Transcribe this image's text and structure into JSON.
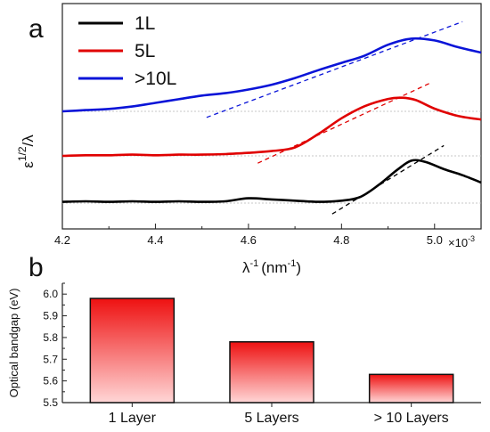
{
  "chart_data": [
    {
      "panel_label": "a",
      "type": "line",
      "xlabel": "λ",
      "xlabel_sup": "-1",
      "xlabel_unit": "(nm",
      "xlabel_unit_sup": "-1",
      "xlabel_close": ")",
      "ylabel": "ε",
      "ylabel_sup": "1/2",
      "ylabel_tail": "/λ",
      "xlim": [
        4.2,
        5.1
      ],
      "x_ticks": [
        "4.2",
        "4.4",
        "4.6",
        "4.8",
        "5.0"
      ],
      "x_multiplier": "×10",
      "x_multiplier_exp": "-3",
      "legend": [
        "1L",
        "5L",
        ">10L"
      ],
      "series": [
        {
          "name": "1L",
          "color": "#000000",
          "offset": 0,
          "x": [
            4.2,
            4.25,
            4.3,
            4.35,
            4.4,
            4.45,
            4.5,
            4.55,
            4.6,
            4.65,
            4.7,
            4.75,
            4.8,
            4.84,
            4.88,
            4.92,
            4.95,
            4.98,
            5.02,
            5.06,
            5.1
          ],
          "y": [
            0.02,
            0.03,
            0.02,
            0.03,
            0.02,
            0.03,
            0.02,
            0.03,
            0.08,
            0.06,
            0.04,
            0.02,
            0.04,
            0.1,
            0.3,
            0.55,
            0.7,
            0.68,
            0.56,
            0.46,
            0.34
          ],
          "fit_line": [
            [
              4.78,
              -0.18
            ],
            [
              5.02,
              0.95
            ]
          ]
        },
        {
          "name": "5L",
          "color": "#e00000",
          "offset": 1,
          "x": [
            4.2,
            4.25,
            4.3,
            4.35,
            4.4,
            4.45,
            4.5,
            4.55,
            4.6,
            4.65,
            4.7,
            4.75,
            4.8,
            4.85,
            4.9,
            4.93,
            4.96,
            5.0,
            5.05,
            5.1
          ],
          "y": [
            0.0,
            0.01,
            0.01,
            0.02,
            0.01,
            0.02,
            0.02,
            0.03,
            0.05,
            0.08,
            0.14,
            0.36,
            0.62,
            0.82,
            0.94,
            0.96,
            0.92,
            0.78,
            0.66,
            0.6
          ],
          "fit_line": [
            [
              4.62,
              -0.12
            ],
            [
              4.99,
              1.2
            ]
          ]
        },
        {
          "name": ">10L",
          "color": "#0a14d8",
          "offset": 2,
          "x": [
            4.2,
            4.25,
            4.3,
            4.35,
            4.4,
            4.45,
            4.5,
            4.55,
            4.6,
            4.65,
            4.7,
            4.75,
            4.8,
            4.85,
            4.9,
            4.95,
            5.0,
            5.05,
            5.1
          ],
          "y": [
            0.0,
            0.02,
            0.04,
            0.08,
            0.14,
            0.2,
            0.26,
            0.3,
            0.36,
            0.44,
            0.55,
            0.68,
            0.8,
            0.92,
            1.1,
            1.2,
            1.17,
            1.06,
            0.97
          ],
          "fit_line": [
            [
              4.51,
              -0.1
            ],
            [
              5.06,
              1.48
            ]
          ]
        }
      ]
    },
    {
      "panel_label": "b",
      "type": "bar",
      "categories": [
        "1 Layer",
        "5 Layers",
        "> 10 Layers"
      ],
      "values": [
        5.98,
        5.78,
        5.63
      ],
      "ylabel": "Optical bandgap (eV)",
      "ylim": [
        5.5,
        6.05
      ],
      "y_ticks": [
        "5.5",
        "5.6",
        "5.7",
        "5.8",
        "5.9",
        "6.0"
      ],
      "bar_color_top": "#ee1111",
      "bar_color_bottom": "#ffd6d6"
    }
  ]
}
